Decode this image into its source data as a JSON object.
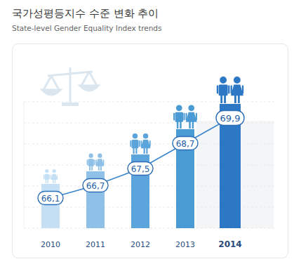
{
  "chart_data": {
    "type": "bar",
    "title": "국가성평등지수 수준 변화 추이",
    "subtitle": "State-level Gender Equality Index trends",
    "categories": [
      "2010",
      "2011",
      "2012",
      "2013",
      "2014"
    ],
    "values": [
      66.1,
      66.7,
      67.5,
      68.7,
      69.9
    ],
    "value_labels": [
      "66,1",
      "66,7",
      "67,5",
      "68,7",
      "69,9"
    ],
    "colors": [
      "#c5e0f4",
      "#8ec0e8",
      "#5ca5dc",
      "#4a9ad4",
      "#2c78c4"
    ],
    "ylim": [
      64,
      70
    ],
    "yticks": [
      64,
      65,
      66,
      67,
      68,
      69,
      70
    ],
    "grid": true,
    "data_labels": true,
    "tick_labels": "x"
  }
}
